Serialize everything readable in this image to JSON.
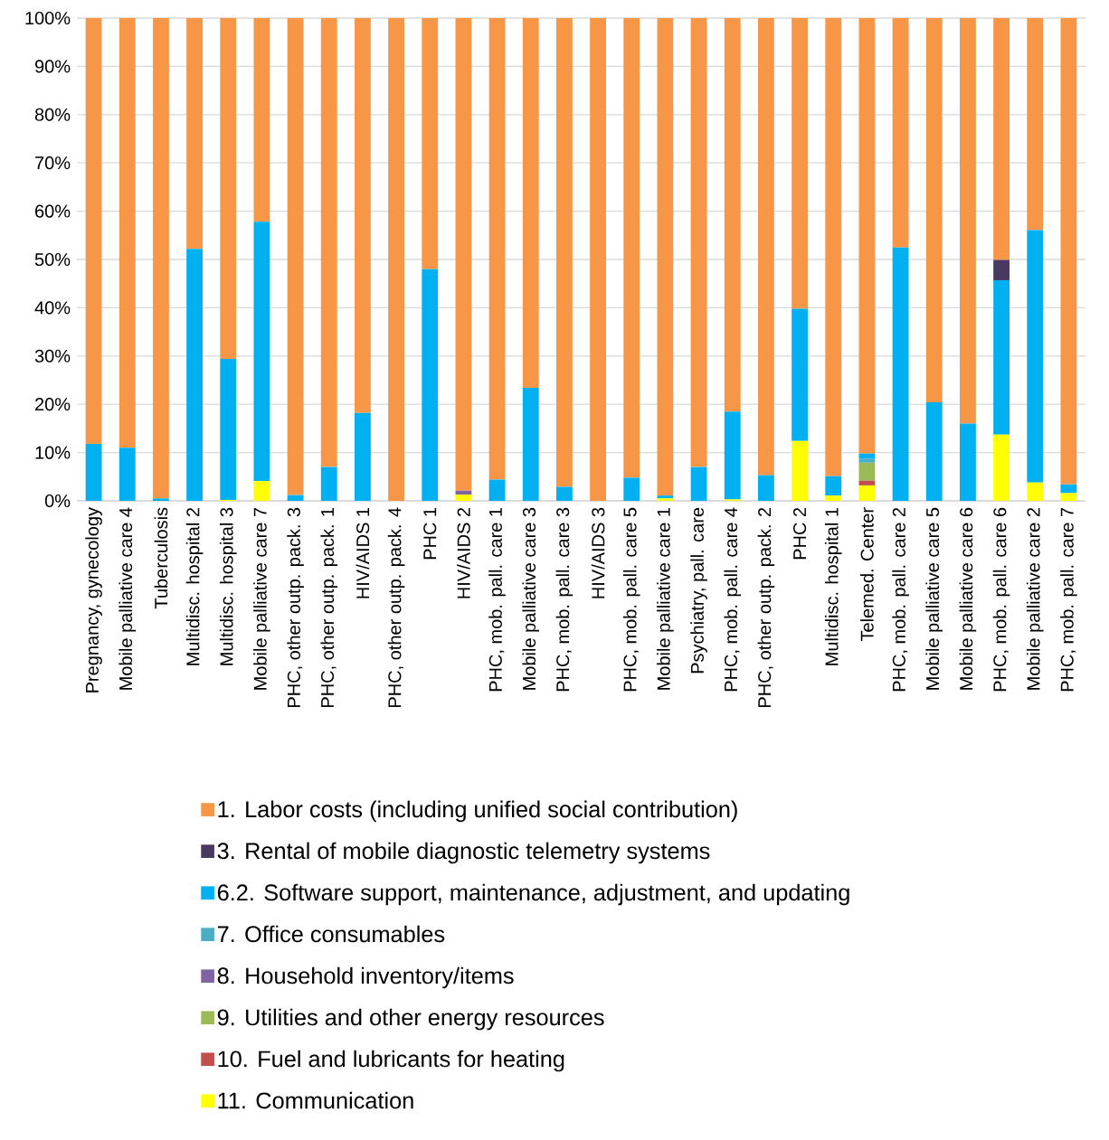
{
  "chart_data": {
    "type": "bar",
    "stacked": true,
    "grid": "y",
    "legend": "bottom",
    "categories": [
      "Pregnancy, gynecology",
      "Mobile palliative care 4",
      "Tuberculosis",
      "Multidisc. hospital 2",
      "Multidisc. hospital 3",
      "Mobile palliative care 7",
      "PHC, other outp. pack. 3",
      "PHC, other outp. pack. 1",
      "HIV/AIDS 1",
      "PHC, other outp. pack. 4",
      "PHC 1",
      "HIV/AIDS 2",
      "PHC, mob. pall. care 1",
      "Mobile palliative care 3",
      "PHC, mob. pall. care 3",
      "HIV/AIDS 3",
      "PHC, mob. pall. care 5",
      "Mobile palliative care 1",
      "Psychiatry, pall. care",
      "PHC, mob. pall. care 4",
      "PHC, other outp. pack. 2",
      "PHC 2",
      "Multidisc. hospital 1",
      "Telemed. Center",
      "PHC, mob. pall. care 2",
      "Mobile palliative care 5",
      "Mobile palliative care 6",
      "PHC, mob. pall. care 6",
      "Mobile palliative care 2",
      "PHC, mob. pall. care 7"
    ],
    "ylim": [
      0,
      100
    ],
    "yticks": [
      {
        "value": 0,
        "label": "0%"
      },
      {
        "value": 10,
        "label": "10%"
      },
      {
        "value": 20,
        "label": "20%"
      },
      {
        "value": 30,
        "label": "30%"
      },
      {
        "value": 40,
        "label": "40%"
      },
      {
        "value": 50,
        "label": "50%"
      },
      {
        "value": 60,
        "label": "60%"
      },
      {
        "value": 70,
        "label": "70%"
      },
      {
        "value": 80,
        "label": "80%"
      },
      {
        "value": 90,
        "label": "90%"
      },
      {
        "value": 100,
        "label": "100%"
      }
    ],
    "series": [
      {
        "name": "11.  Communication",
        "color": "#ffff00",
        "values": [
          0,
          0,
          0,
          0,
          0.2,
          4.1,
          0,
          0,
          0,
          0,
          0,
          1.3,
          0,
          0,
          0,
          0,
          0,
          0.5,
          0,
          0.3,
          0,
          12.4,
          1.1,
          3.2,
          0,
          0,
          0,
          13.7,
          3.8,
          1.6
        ]
      },
      {
        "name": "10.  Fuel and lubricants for heating",
        "color": "#c0504d",
        "values": [
          0,
          0,
          0,
          0,
          0,
          0,
          0,
          0,
          0,
          0,
          0,
          0,
          0,
          0,
          0,
          0,
          0,
          0,
          0,
          0,
          0,
          0,
          0,
          1.0,
          0,
          0,
          0,
          0,
          0,
          0
        ]
      },
      {
        "name": "9.  Utilities and other energy resources",
        "color": "#9bbb59",
        "values": [
          0,
          0,
          0,
          0,
          0,
          0,
          0,
          0,
          0,
          0,
          0,
          0,
          0,
          0,
          0,
          0,
          0,
          0,
          0,
          0,
          0,
          0,
          0,
          3.7,
          0,
          0,
          0,
          0,
          0,
          0
        ]
      },
      {
        "name": "8.  Household inventory/items",
        "color": "#8064a2",
        "values": [
          0,
          0,
          0,
          0,
          0,
          0,
          0,
          0,
          0,
          0,
          0,
          0.8,
          0,
          0,
          0,
          0,
          0,
          0,
          0,
          0,
          0,
          0,
          0,
          0,
          0,
          0,
          0,
          0,
          0,
          0
        ]
      },
      {
        "name": "7.  Office consumables",
        "color": "#4bacc6",
        "values": [
          0,
          0,
          0,
          0,
          0,
          0,
          0,
          0,
          0,
          0,
          0,
          0,
          0,
          0,
          0,
          0,
          0,
          0,
          0,
          0,
          0,
          0,
          0,
          0.8,
          0,
          0,
          0,
          0,
          0,
          0
        ]
      },
      {
        "name": "6.2.  Software support, maintenance, adjustment, and updating",
        "color": "#00b0f0",
        "values": [
          11.8,
          11.0,
          0.5,
          52.2,
          29.2,
          53.7,
          1.2,
          7.0,
          18.2,
          0,
          48.0,
          0,
          4.4,
          23.4,
          2.9,
          0,
          4.8,
          0.6,
          7.0,
          18.2,
          5.3,
          27.4,
          4.0,
          1.1,
          52.5,
          20.4,
          16.0,
          32.0,
          52.3,
          1.8
        ]
      },
      {
        "name": "3. Rental of mobile diagnostic telemetry systems",
        "color": "#47395f",
        "values": [
          0,
          0,
          0,
          0,
          0,
          0,
          0,
          0,
          0,
          0,
          0,
          0,
          0,
          0,
          0,
          0,
          0,
          0,
          0,
          0,
          0,
          0,
          0,
          0,
          0,
          0,
          0,
          4.2,
          0,
          0
        ]
      },
      {
        "name": "1. Labor costs (including unified social contribution)",
        "color": "#f79646",
        "values": [
          88.2,
          89.0,
          99.5,
          47.8,
          70.6,
          42.2,
          98.8,
          93.0,
          81.8,
          100,
          52.0,
          97.9,
          95.6,
          76.6,
          97.1,
          100,
          95.2,
          98.9,
          93.0,
          81.5,
          94.7,
          60.2,
          94.9,
          90.2,
          47.5,
          79.6,
          84.0,
          50.1,
          43.9,
          96.6
        ]
      }
    ]
  }
}
